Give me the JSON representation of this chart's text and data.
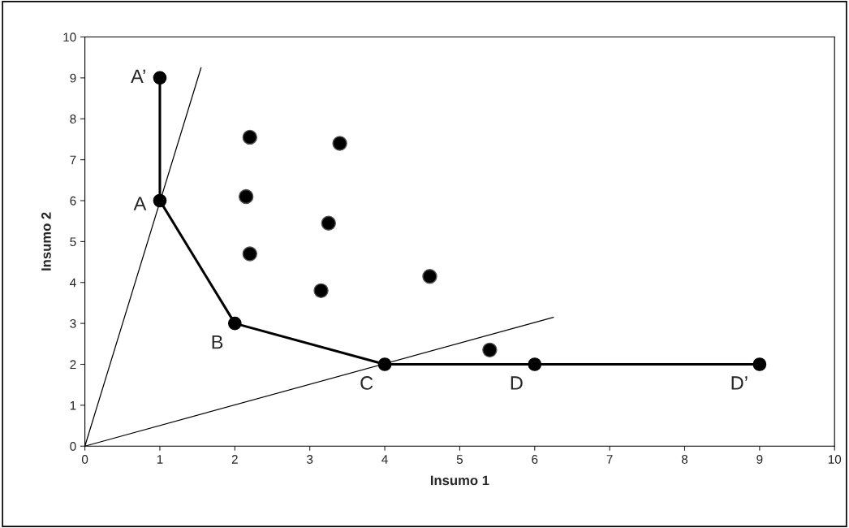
{
  "chart_data": {
    "type": "scatter",
    "xlabel": "Insumo 1",
    "ylabel": "Insumo 2",
    "xlim": [
      0,
      10
    ],
    "ylim": [
      0,
      10
    ],
    "xticks": [
      0,
      1,
      2,
      3,
      4,
      5,
      6,
      7,
      8,
      9,
      10
    ],
    "yticks": [
      0,
      1,
      2,
      3,
      4,
      5,
      6,
      7,
      8,
      9,
      10
    ],
    "grid": false,
    "series": [
      {
        "color": "#000000",
        "marker": "circle",
        "x": [
          2.2,
          3.4,
          2.15,
          3.25,
          2.2,
          3.15,
          4.6,
          5.4
        ],
        "values": [
          7.55,
          7.4,
          6.1,
          5.45,
          4.7,
          3.8,
          4.15,
          2.35
        ]
      },
      {
        "type": "line",
        "color": "#000000",
        "marker": "circle",
        "line_style": "solid",
        "x": [
          1,
          1,
          2,
          4,
          6,
          9
        ],
        "values": [
          9,
          6,
          3,
          2,
          2,
          2
        ]
      },
      {
        "type": "line",
        "color": "#000000",
        "marker": "none",
        "line_style": "solid",
        "x": [
          0,
          1.55
        ],
        "values": [
          0,
          9.25
        ]
      },
      {
        "type": "line",
        "color": "#000000",
        "marker": "none",
        "line_style": "solid",
        "x": [
          0,
          6.25
        ],
        "values": [
          0,
          3.15
        ]
      }
    ],
    "annotations": [
      {
        "text": "A’",
        "x": 1,
        "y": 9
      },
      {
        "text": "A",
        "x": 1,
        "y": 6
      },
      {
        "text": "B",
        "x": 2,
        "y": 3
      },
      {
        "text": "C",
        "x": 4,
        "y": 2
      },
      {
        "text": "D",
        "x": 6,
        "y": 2
      },
      {
        "text": "D’",
        "x": 9,
        "y": 2
      }
    ]
  }
}
